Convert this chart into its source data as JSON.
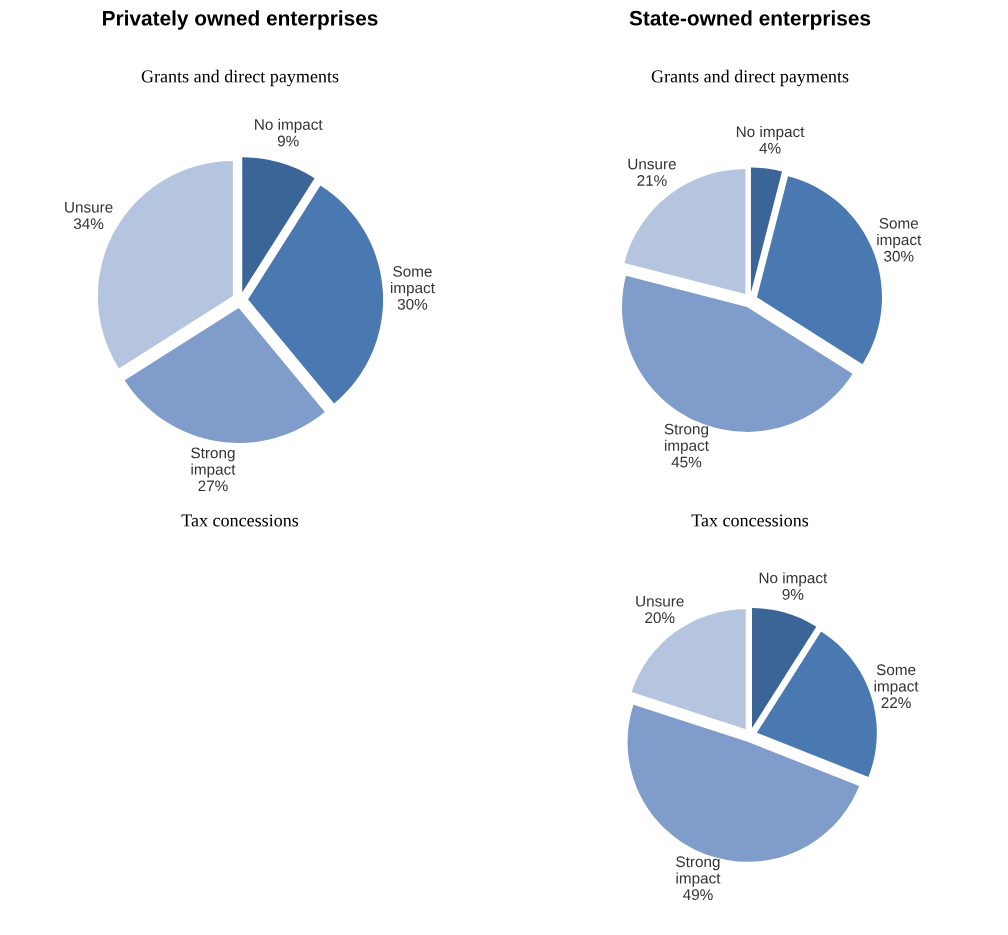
{
  "chart_data": [
    {
      "type": "pie",
      "title": "Privately owned enterprises",
      "subtitle": "Grants and direct payments",
      "categories": [
        "No impact",
        "Some\nimpact",
        "Strong\nimpact",
        "Unsure"
      ],
      "values": [
        9,
        30,
        27,
        34
      ],
      "value_labels": [
        "9%",
        "30%",
        "27%",
        "34%"
      ],
      "colors": [
        "#3b6596",
        "#4a79b1",
        "#7f9ccb",
        "#b5c4df"
      ]
    },
    {
      "type": "pie",
      "title": "State-owned enterprises",
      "subtitle": "Grants and direct payments",
      "categories": [
        "No impact",
        "Some\nimpact",
        "Strong\nimpact",
        "Unsure"
      ],
      "values": [
        4,
        30,
        45,
        21
      ],
      "value_labels": [
        "4%",
        "30%",
        "45%",
        "21%"
      ],
      "colors": [
        "#3b6596",
        "#4a79b1",
        "#7f9ccb",
        "#b5c4df"
      ]
    },
    {
      "type": "other",
      "subtitle": "Tax concessions"
    },
    {
      "type": "pie",
      "subtitle": "Tax concessions",
      "categories": [
        "No impact",
        "Some\nimpact",
        "Strong\nimpact",
        "Unsure"
      ],
      "values": [
        9,
        22,
        49,
        20
      ],
      "value_labels": [
        "9%",
        "22%",
        "49%",
        "20%"
      ],
      "colors": [
        "#3b6596",
        "#4a79b1",
        "#7f9ccb",
        "#b5c4df"
      ]
    }
  ]
}
